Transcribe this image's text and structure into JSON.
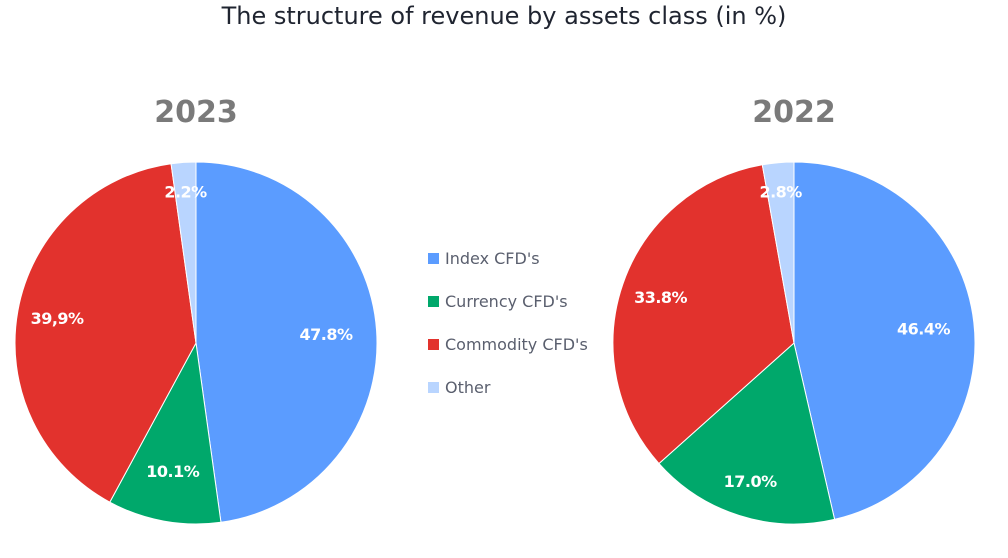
{
  "title": "The structure of revenue by assets class (in %)",
  "legend": [
    {
      "label": "Index CFD's",
      "color": "#5b9cff"
    },
    {
      "label": "Currency CFD's",
      "color": "#00a86b"
    },
    {
      "label": "Commodity CFD's",
      "color": "#e2322d"
    },
    {
      "label": "Other",
      "color": "#b9d5ff"
    }
  ],
  "chart_data": [
    {
      "type": "pie",
      "title": "2023",
      "categories": [
        "Index CFD's",
        "Currency CFD's",
        "Commodity CFD's",
        "Other"
      ],
      "values": [
        47.8,
        10.1,
        39.9,
        2.2
      ],
      "labels": [
        "47.8%",
        "10.1%",
        "39,9%",
        "2.2%"
      ],
      "colors": [
        "#5b9cff",
        "#00a86b",
        "#e2322d",
        "#b9d5ff"
      ]
    },
    {
      "type": "pie",
      "title": "2022",
      "categories": [
        "Index CFD's",
        "Currency CFD's",
        "Commodity CFD's",
        "Other"
      ],
      "values": [
        46.4,
        17.0,
        33.8,
        2.8
      ],
      "labels": [
        "46.4%",
        "17.0%",
        "33.8%",
        "2.8%"
      ],
      "colors": [
        "#5b9cff",
        "#00a86b",
        "#e2322d",
        "#b9d5ff"
      ]
    }
  ]
}
